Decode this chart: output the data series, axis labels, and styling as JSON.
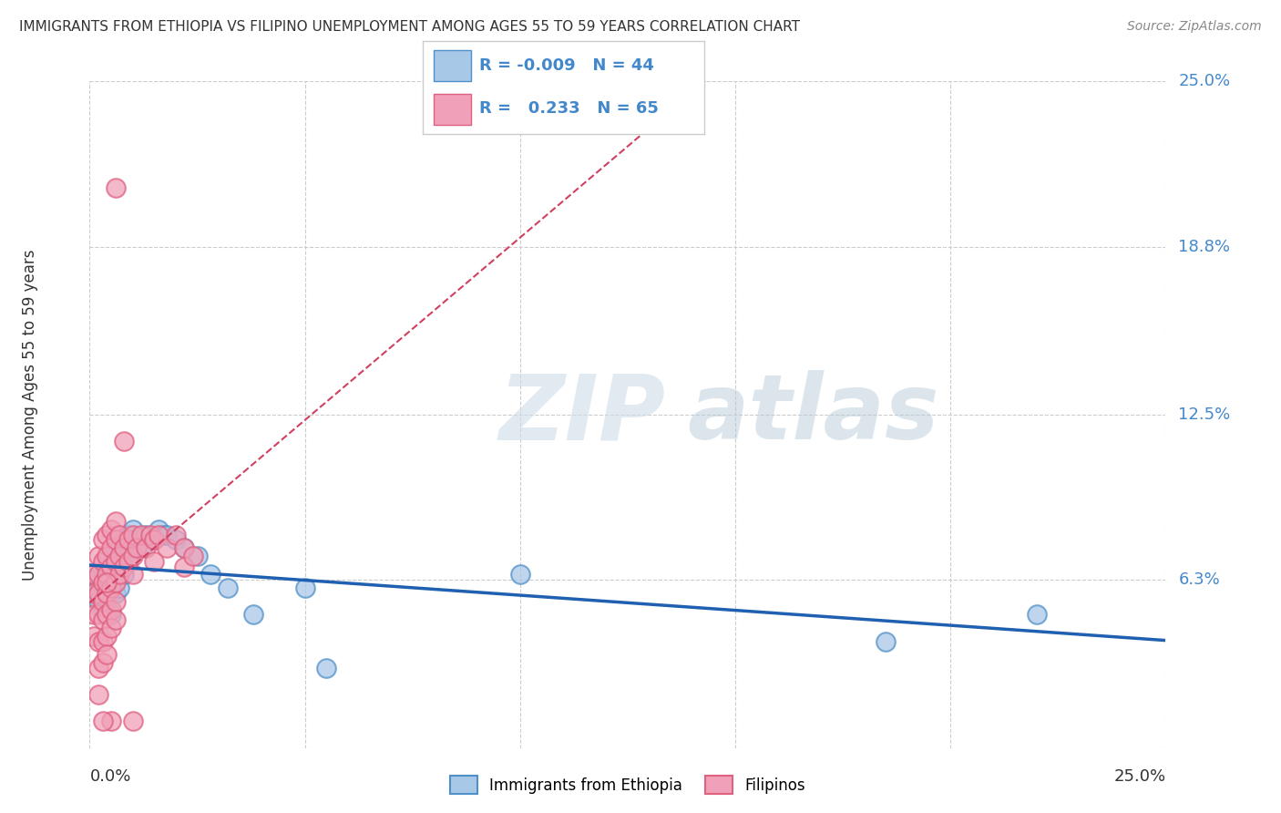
{
  "title": "IMMIGRANTS FROM ETHIOPIA VS FILIPINO UNEMPLOYMENT AMONG AGES 55 TO 59 YEARS CORRELATION CHART",
  "source": "Source: ZipAtlas.com",
  "ylabel": "Unemployment Among Ages 55 to 59 years",
  "xlim": [
    0.0,
    0.25
  ],
  "ylim": [
    0.0,
    0.25
  ],
  "ytick_vals": [
    0.0,
    0.063,
    0.125,
    0.188,
    0.25
  ],
  "ytick_labels": [
    "",
    "6.3%",
    "12.5%",
    "18.8%",
    "25.0%"
  ],
  "xtick_vals": [
    0.0,
    0.05,
    0.1,
    0.15,
    0.2,
    0.25
  ],
  "watermark_zip": "ZIP",
  "watermark_atlas": "atlas",
  "legend_ethiopia_r": "-0.009",
  "legend_ethiopia_n": "44",
  "legend_filipino_r": "0.233",
  "legend_filipino_n": "65",
  "ethiopia_color": "#a8c8e8",
  "filipino_color": "#f0a0b8",
  "ethiopia_edge_color": "#5090c8",
  "filipino_edge_color": "#e06080",
  "ethiopia_line_color": "#2060b0",
  "filipino_line_color": "#d04060",
  "ethiopia_line_style": "solid",
  "filipino_line_style": "dashed",
  "grid_color": "#cccccc",
  "right_label_color": "#4488cc",
  "ethiopia_points": [
    [
      0.001,
      0.063
    ],
    [
      0.002,
      0.06
    ],
    [
      0.002,
      0.055
    ],
    [
      0.003,
      0.065
    ],
    [
      0.003,
      0.058
    ],
    [
      0.003,
      0.052
    ],
    [
      0.004,
      0.068
    ],
    [
      0.004,
      0.062
    ],
    [
      0.004,
      0.055
    ],
    [
      0.005,
      0.07
    ],
    [
      0.005,
      0.065
    ],
    [
      0.005,
      0.058
    ],
    [
      0.005,
      0.05
    ],
    [
      0.006,
      0.072
    ],
    [
      0.006,
      0.065
    ],
    [
      0.006,
      0.058
    ],
    [
      0.007,
      0.075
    ],
    [
      0.007,
      0.068
    ],
    [
      0.007,
      0.06
    ],
    [
      0.008,
      0.078
    ],
    [
      0.008,
      0.072
    ],
    [
      0.008,
      0.065
    ],
    [
      0.009,
      0.08
    ],
    [
      0.009,
      0.072
    ],
    [
      0.01,
      0.082
    ],
    [
      0.01,
      0.075
    ],
    [
      0.011,
      0.078
    ],
    [
      0.012,
      0.075
    ],
    [
      0.013,
      0.08
    ],
    [
      0.015,
      0.078
    ],
    [
      0.016,
      0.082
    ],
    [
      0.017,
      0.08
    ],
    [
      0.018,
      0.08
    ],
    [
      0.02,
      0.078
    ],
    [
      0.022,
      0.075
    ],
    [
      0.025,
      0.072
    ],
    [
      0.028,
      0.065
    ],
    [
      0.032,
      0.06
    ],
    [
      0.038,
      0.05
    ],
    [
      0.05,
      0.06
    ],
    [
      0.055,
      0.03
    ],
    [
      0.1,
      0.065
    ],
    [
      0.185,
      0.04
    ],
    [
      0.22,
      0.05
    ]
  ],
  "filipino_points": [
    [
      0.001,
      0.065
    ],
    [
      0.001,
      0.058
    ],
    [
      0.001,
      0.05
    ],
    [
      0.001,
      0.042
    ],
    [
      0.002,
      0.072
    ],
    [
      0.002,
      0.065
    ],
    [
      0.002,
      0.058
    ],
    [
      0.002,
      0.05
    ],
    [
      0.002,
      0.04
    ],
    [
      0.002,
      0.03
    ],
    [
      0.002,
      0.02
    ],
    [
      0.003,
      0.078
    ],
    [
      0.003,
      0.07
    ],
    [
      0.003,
      0.062
    ],
    [
      0.003,
      0.055
    ],
    [
      0.003,
      0.048
    ],
    [
      0.003,
      0.04
    ],
    [
      0.003,
      0.032
    ],
    [
      0.004,
      0.08
    ],
    [
      0.004,
      0.072
    ],
    [
      0.004,
      0.065
    ],
    [
      0.004,
      0.058
    ],
    [
      0.004,
      0.05
    ],
    [
      0.004,
      0.042
    ],
    [
      0.004,
      0.035
    ],
    [
      0.005,
      0.082
    ],
    [
      0.005,
      0.075
    ],
    [
      0.005,
      0.068
    ],
    [
      0.005,
      0.06
    ],
    [
      0.005,
      0.052
    ],
    [
      0.005,
      0.045
    ],
    [
      0.006,
      0.085
    ],
    [
      0.006,
      0.078
    ],
    [
      0.006,
      0.07
    ],
    [
      0.006,
      0.062
    ],
    [
      0.006,
      0.055
    ],
    [
      0.006,
      0.048
    ],
    [
      0.007,
      0.08
    ],
    [
      0.007,
      0.072
    ],
    [
      0.007,
      0.065
    ],
    [
      0.008,
      0.115
    ],
    [
      0.008,
      0.075
    ],
    [
      0.008,
      0.068
    ],
    [
      0.009,
      0.078
    ],
    [
      0.009,
      0.07
    ],
    [
      0.01,
      0.08
    ],
    [
      0.01,
      0.072
    ],
    [
      0.01,
      0.065
    ],
    [
      0.011,
      0.075
    ],
    [
      0.012,
      0.08
    ],
    [
      0.013,
      0.075
    ],
    [
      0.014,
      0.08
    ],
    [
      0.015,
      0.078
    ],
    [
      0.015,
      0.07
    ],
    [
      0.016,
      0.08
    ],
    [
      0.018,
      0.075
    ],
    [
      0.02,
      0.08
    ],
    [
      0.022,
      0.075
    ],
    [
      0.022,
      0.068
    ],
    [
      0.024,
      0.072
    ],
    [
      0.006,
      0.21
    ],
    [
      0.005,
      0.01
    ],
    [
      0.003,
      0.01
    ],
    [
      0.01,
      0.01
    ],
    [
      0.004,
      0.062
    ]
  ]
}
